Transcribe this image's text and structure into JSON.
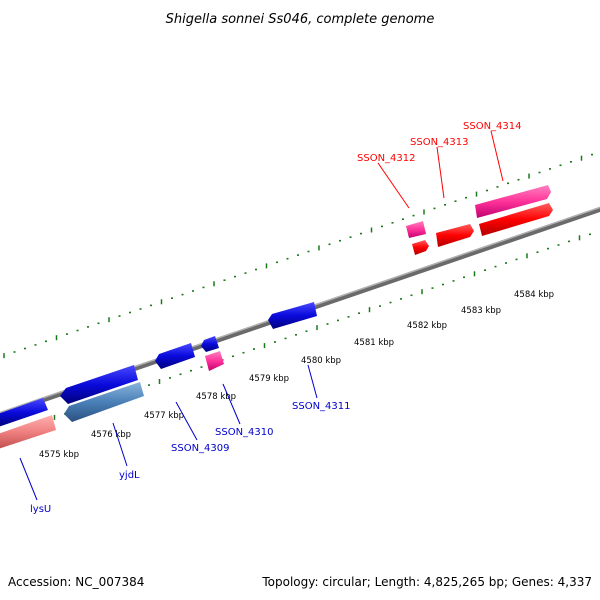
{
  "title": "Shigella sonnei Ss046, complete genome",
  "footer": {
    "accession": "Accession: NC_007384",
    "summary": "Topology: circular; Length: 4,825,265 bp; Genes: 4,337"
  },
  "colors": {
    "backbone": "#808080",
    "tick": "#1a7a1a",
    "forward_label": "#ff0000",
    "reverse_label": "#0000cc",
    "blue_gene": "#0a0adc",
    "steel_gene": "#4a80b8",
    "salmon_gene": "#f08080",
    "pink_gene": "#ff3399",
    "red_gene": "#ff0000"
  },
  "scale": {
    "unit": "kbp",
    "labels": [
      "4575 kbp",
      "4576 kbp",
      "4577 kbp",
      "4578 kbp",
      "4579 kbp",
      "4580 kbp",
      "4581 kbp",
      "4582 kbp",
      "4583 kbp",
      "4584 kbp"
    ]
  },
  "gene_labels": [
    {
      "name": "lysU",
      "strand": "reverse"
    },
    {
      "name": "yjdL",
      "strand": "reverse"
    },
    {
      "name": "SSON_4309",
      "strand": "reverse"
    },
    {
      "name": "SSON_4310",
      "strand": "reverse"
    },
    {
      "name": "SSON_4311",
      "strand": "reverse"
    },
    {
      "name": "SSON_4312",
      "strand": "forward"
    },
    {
      "name": "SSON_4313",
      "strand": "forward"
    },
    {
      "name": "SSON_4314",
      "strand": "forward"
    }
  ]
}
